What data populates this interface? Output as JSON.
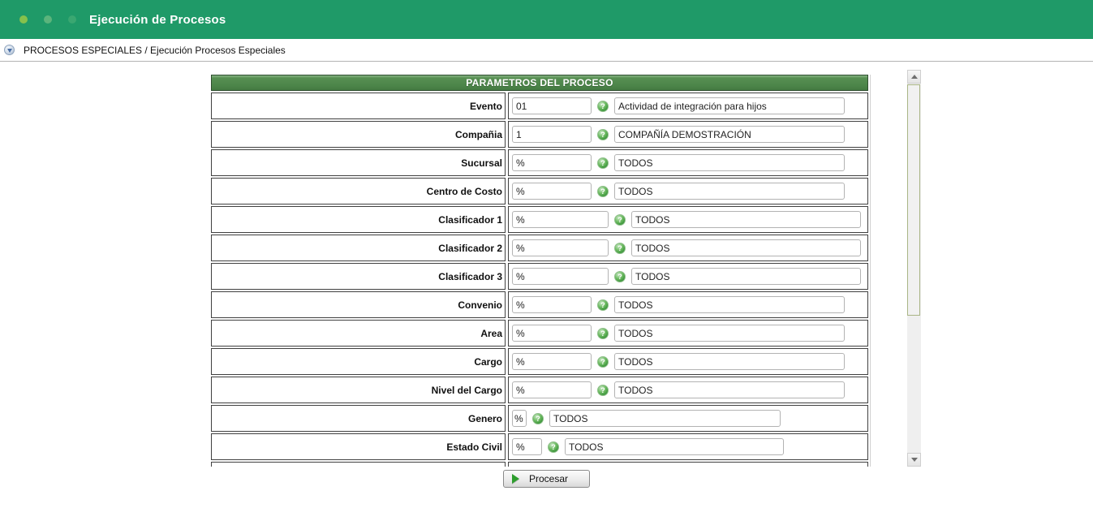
{
  "header": {
    "title": "Ejecución de Procesos"
  },
  "breadcrumb": {
    "text": "PROCESOS ESPECIALES / Ejecución Procesos Especiales"
  },
  "form": {
    "title": "PARAMETROS DEL PROCESO",
    "help_icon_glyph": "?",
    "rows": [
      {
        "label": "Evento",
        "code": "01",
        "description": "Actividad de integración para hijos",
        "variant": "std"
      },
      {
        "label": "Compañia",
        "code": "1",
        "description": "COMPAÑÍA DEMOSTRACIÓN",
        "variant": "std"
      },
      {
        "label": "Sucursal",
        "code": "%",
        "description": "TODOS",
        "variant": "std"
      },
      {
        "label": "Centro de Costo",
        "code": "%",
        "description": "TODOS",
        "variant": "std"
      },
      {
        "label": "Clasificador 1",
        "code": "%",
        "description": "TODOS",
        "variant": "wide"
      },
      {
        "label": "Clasificador 2",
        "code": "%",
        "description": "TODOS",
        "variant": "wide"
      },
      {
        "label": "Clasificador 3",
        "code": "%",
        "description": "TODOS",
        "variant": "wide"
      },
      {
        "label": "Convenio",
        "code": "%",
        "description": "TODOS",
        "variant": "std"
      },
      {
        "label": "Area",
        "code": "%",
        "description": "TODOS",
        "variant": "std"
      },
      {
        "label": "Cargo",
        "code": "%",
        "description": "TODOS",
        "variant": "std"
      },
      {
        "label": "Nivel del Cargo",
        "code": "%",
        "description": "TODOS",
        "variant": "std"
      },
      {
        "label": "Genero",
        "code": "%",
        "description": "TODOS",
        "variant": "narrow"
      },
      {
        "label": "Estado Civil",
        "code": "%",
        "description": "TODOS",
        "variant": "medium"
      }
    ]
  },
  "actions": {
    "process_label": "Procesar"
  },
  "colors": {
    "topbar_green": "#1f9a68",
    "form_header_green": "#4c8549",
    "help_icon_green": "#379138",
    "play_icon_green": "#2e9e2e",
    "scroll_thumb_border": "#a9b585"
  }
}
